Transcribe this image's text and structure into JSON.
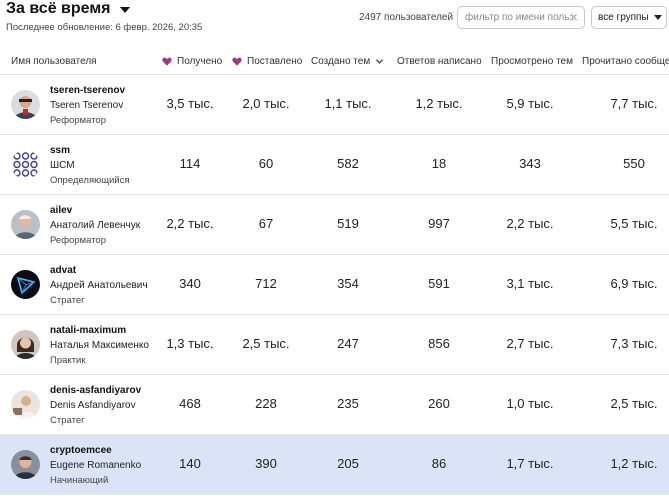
{
  "header": {
    "title": "За всё время",
    "updated": "Последнее обновление: 6 февр. 2026, 20:35",
    "user_count": "2497 пользователей",
    "filter_placeholder": "фильтр по имени пользователя",
    "group_select": "все группы"
  },
  "columns": {
    "username": "Имя пользователя",
    "received": "Получено",
    "given": "Поставлено",
    "topics": "Создано тем",
    "replies": "Ответов написано",
    "viewed": "Просмотрено тем",
    "read": "Прочитано сообщений"
  },
  "rows": [
    {
      "username": "tseren-tserenov",
      "name": "Tseren Tserenov",
      "level": "Реформатор",
      "received": "3,5 тыс.",
      "given": "2,0 тыс.",
      "topics": "1,1 тыс.",
      "replies": "1,2 тыс.",
      "viewed": "5,9 тыс.",
      "read": "7,7 тыс."
    },
    {
      "username": "ssm",
      "name": "ШСМ",
      "level": "Определяющийся",
      "received": "114",
      "given": "60",
      "topics": "582",
      "replies": "18",
      "viewed": "343",
      "read": "550"
    },
    {
      "username": "ailev",
      "name": "Анатолий Левенчук",
      "level": "Реформатор",
      "received": "2,2 тыс.",
      "given": "67",
      "topics": "519",
      "replies": "997",
      "viewed": "2,2 тыс.",
      "read": "5,5 тыс."
    },
    {
      "username": "advat",
      "name": "Андрей Анатольевич",
      "level": "Стратег",
      "received": "340",
      "given": "712",
      "topics": "354",
      "replies": "591",
      "viewed": "3,1 тыс.",
      "read": "6,9 тыс."
    },
    {
      "username": "natali-maximum",
      "name": "Наталья Максименко",
      "level": "Практик",
      "received": "1,3 тыс.",
      "given": "2,5 тыс.",
      "topics": "247",
      "replies": "856",
      "viewed": "2,7 тыс.",
      "read": "7,3 тыс."
    },
    {
      "username": "denis-asfandiyarov",
      "name": "Denis Asfandiyarov",
      "level": "Стратег",
      "received": "468",
      "given": "228",
      "topics": "235",
      "replies": "260",
      "viewed": "1,0 тыс.",
      "read": "2,5 тыс."
    },
    {
      "username": "cryptoemcee",
      "name": "Eugene Romanenko",
      "level": "Начинающий",
      "received": "140",
      "given": "390",
      "topics": "205",
      "replies": "86",
      "viewed": "1,7 тыс.",
      "read": "1,2 тыс."
    }
  ],
  "colors": {
    "heart": "#9c3a7e",
    "highlight_row": "#dbe4f7"
  }
}
